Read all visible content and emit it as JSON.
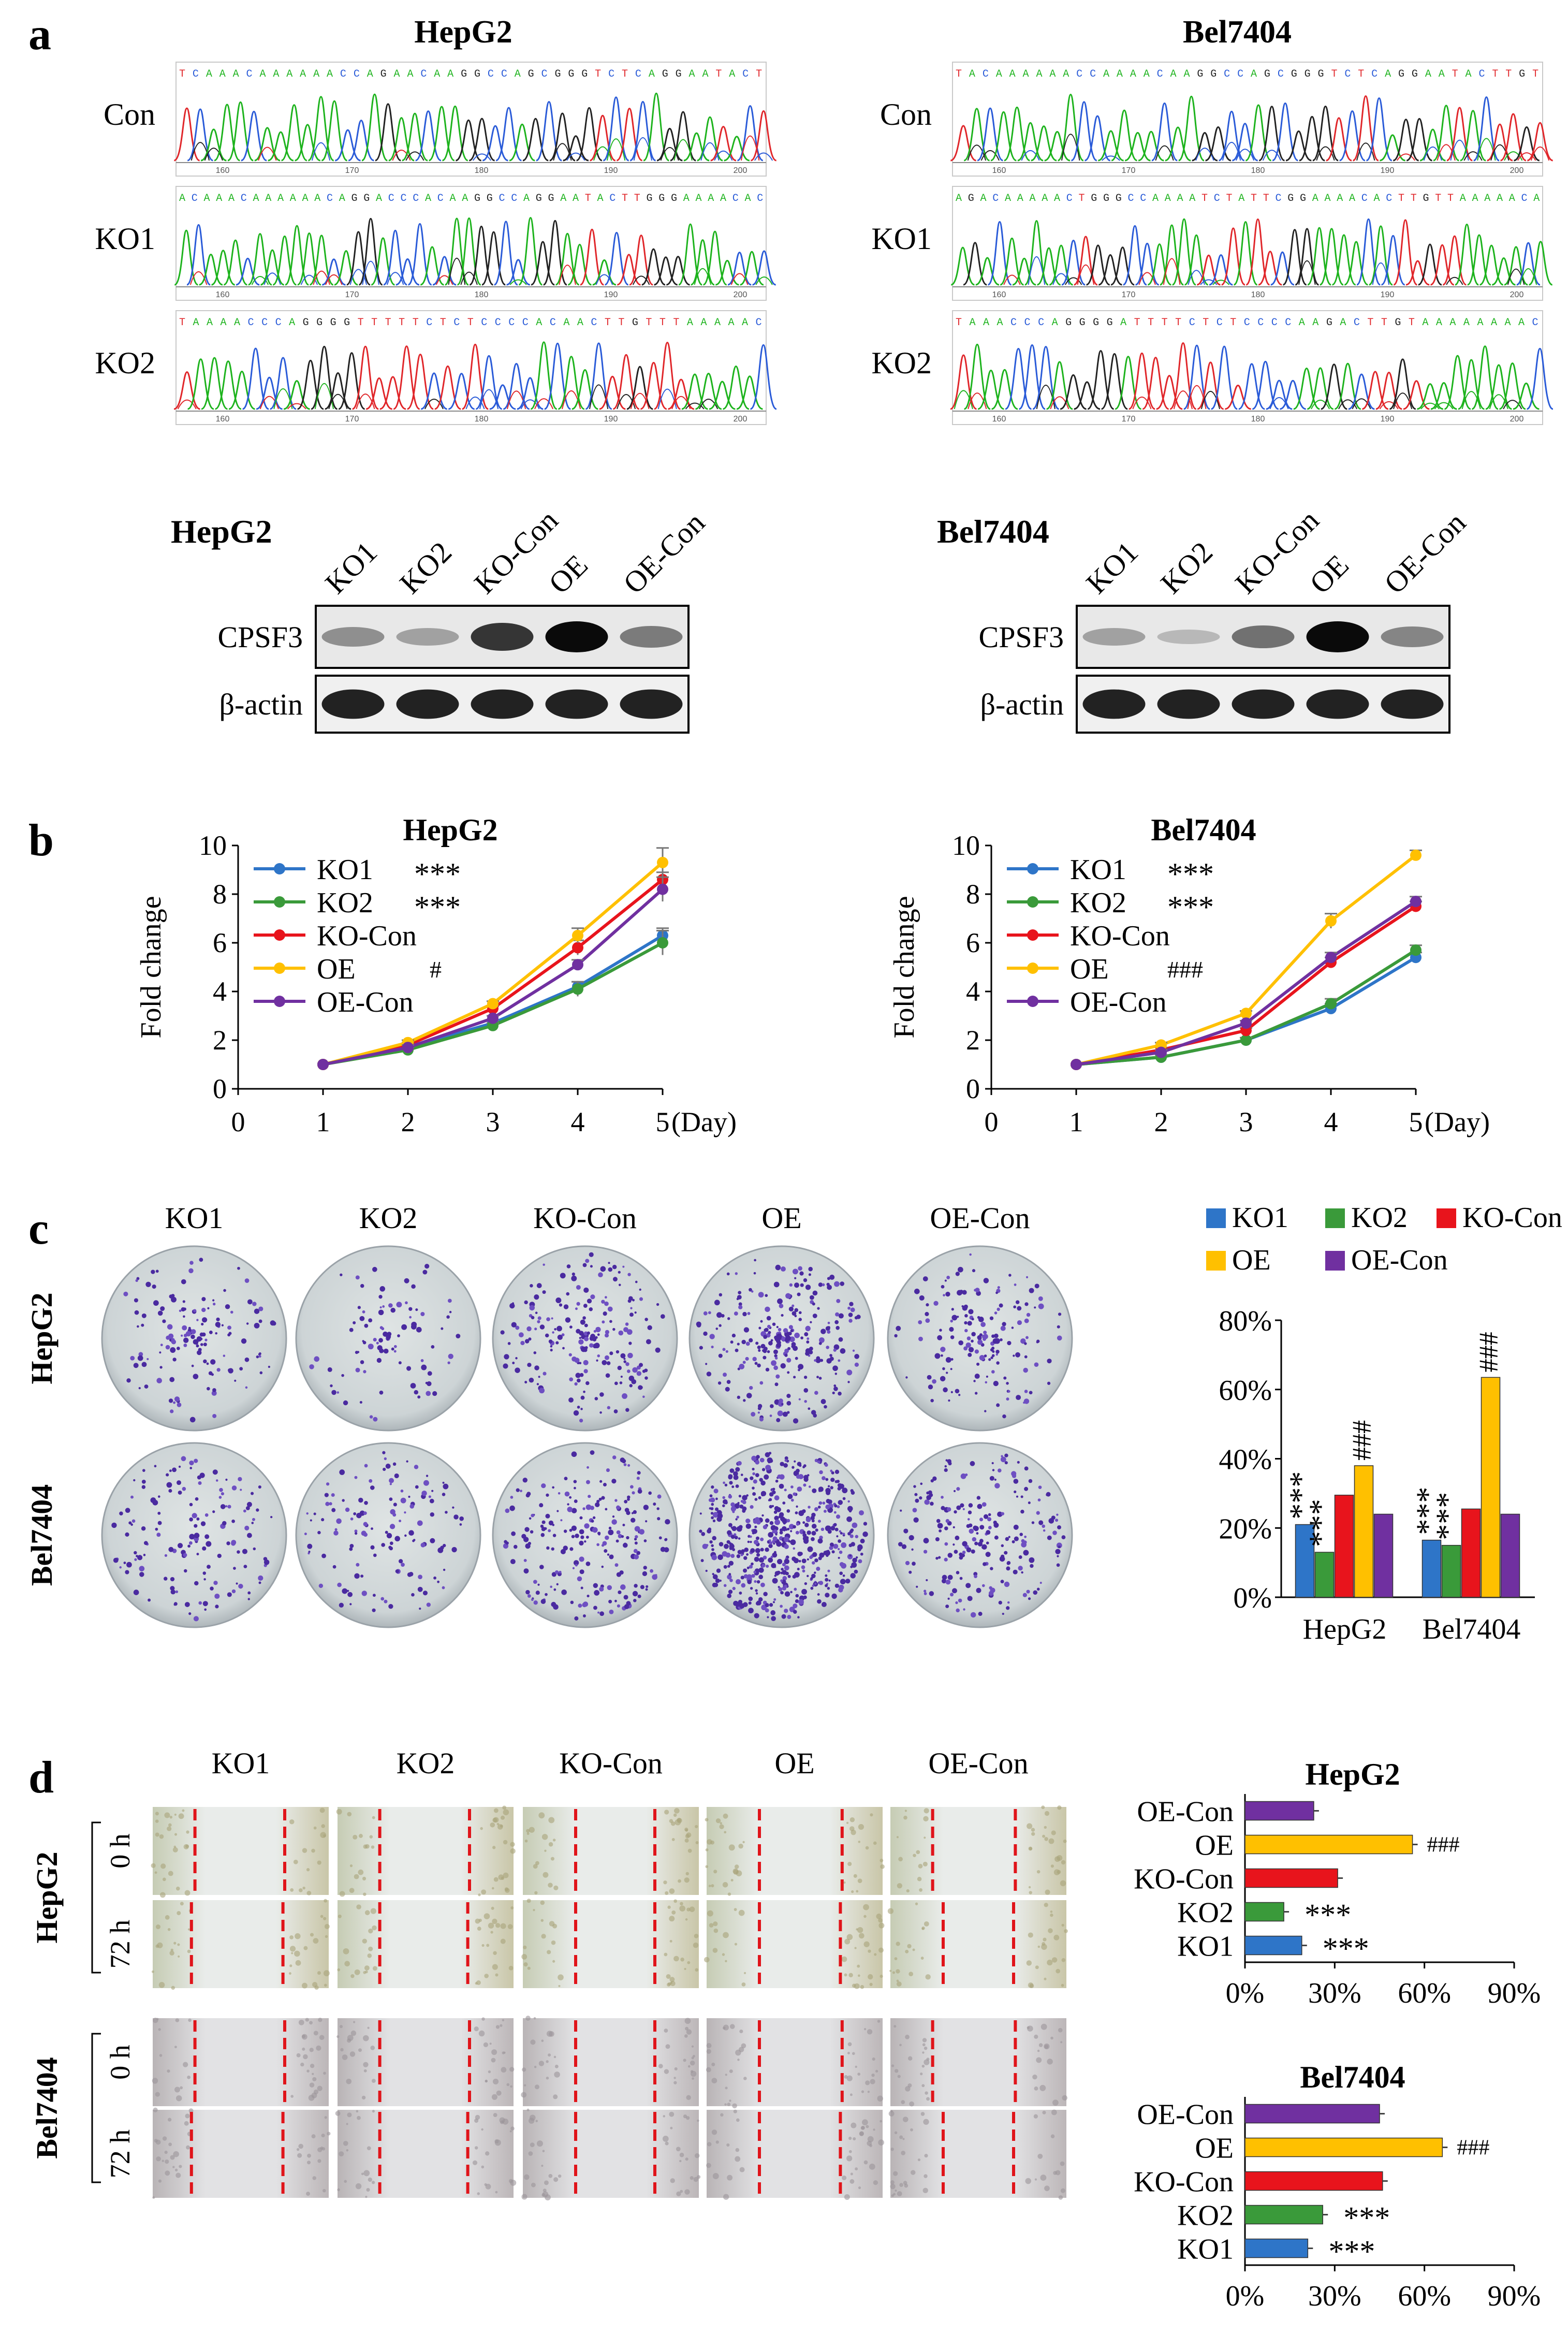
{
  "panel_a": {
    "letter": "a",
    "titles": [
      "HepG2",
      "Bel7404"
    ],
    "row_labels": [
      "Con",
      "KO1",
      "KO2"
    ],
    "seq_hep": [
      "TCAAACAAAAAACCAGAACAAGGCCAGCGGGTCTCAGGAATACT",
      "ACAAACAAAAAACAGGACCCACAAGGCCAGGAATACTTGGGAAAACAC",
      "TAAAACCCAGGGGTTTTTCTCTCCCCACAACTTGTTTAAAAAC"
    ],
    "seq_bel": [
      "TACAAAAAACCAAAACAAGGCCAGCGGGTCTCAGGAATACTTGT",
      "AGACAAAAACTGGGCCAAAATCTATTCGGAAAACACTTGTTAAAAACA",
      "TAAACCCAGGGGATTTTCTCTCCCCAAGACTTGTAAAAAAAAC"
    ],
    "ticks": [
      "160",
      "170",
      "180",
      "190",
      "200"
    ],
    "wb_cell_lines": [
      "HepG2",
      "Bel7404"
    ],
    "wb_lanes": [
      "KO1",
      "KO2",
      "KO-Con",
      "OE",
      "OE-Con"
    ],
    "wb_proteins": [
      "CPSF3",
      "β-actin"
    ],
    "cpsf3_intensity_hep": [
      0.45,
      0.35,
      0.85,
      1.0,
      0.55
    ],
    "cpsf3_intensity_bel": [
      0.35,
      0.2,
      0.6,
      1.0,
      0.5
    ]
  },
  "panel_b": {
    "letter": "b",
    "ylabel": "Fold change",
    "xunit": "(Day)",
    "colors": {
      "KO1": "#2e75c8",
      "KO2": "#3a9a3a",
      "KO-Con": "#e8141c",
      "OE": "#ffc000",
      "OE-Con": "#7030a0"
    }
  },
  "panel_c": {
    "letter": "c",
    "columns": [
      "KO1",
      "KO2",
      "KO-Con",
      "OE",
      "OE-Con"
    ],
    "rows": [
      "HepG2",
      "Bel7404"
    ]
  },
  "panel_d": {
    "letter": "d",
    "columns": [
      "KO1",
      "KO2",
      "KO-Con",
      "OE",
      "OE-Con"
    ],
    "rows": [
      "HepG2",
      "Bel7404"
    ],
    "timepoints": [
      "0 h",
      "72 h"
    ]
  },
  "chart_data": [
    {
      "id": "growth-hepg2",
      "type": "line",
      "title": "HepG2",
      "xlabel": "(Day)",
      "ylabel": "Fold change",
      "x": [
        1,
        2,
        3,
        4,
        5
      ],
      "xlim": [
        0,
        5
      ],
      "ylim": [
        0,
        10
      ],
      "xticks": [
        "0",
        "1",
        "2",
        "3",
        "4",
        "5"
      ],
      "yticks": [
        "0",
        "2",
        "4",
        "6",
        "8",
        "10"
      ],
      "series": [
        {
          "name": "KO1",
          "stat": "***",
          "values": [
            1,
            1.7,
            2.7,
            4.2,
            6.3
          ],
          "err": [
            0,
            0.1,
            0.1,
            0.2,
            0.3
          ]
        },
        {
          "name": "KO2",
          "stat": "***",
          "values": [
            1,
            1.6,
            2.6,
            4.1,
            6.0
          ],
          "err": [
            0,
            0.1,
            0.1,
            0.3,
            0.5
          ]
        },
        {
          "name": "KO-Con",
          "stat": "",
          "values": [
            1,
            1.8,
            3.3,
            5.8,
            8.6
          ],
          "err": [
            0,
            0.1,
            0.1,
            0.3,
            0.3
          ]
        },
        {
          "name": "OE",
          "stat": "#",
          "values": [
            1,
            1.9,
            3.5,
            6.3,
            9.3
          ],
          "err": [
            0,
            0.1,
            0.1,
            0.3,
            0.6
          ]
        },
        {
          "name": "OE-Con",
          "stat": "",
          "values": [
            1,
            1.7,
            2.9,
            5.1,
            8.2
          ],
          "err": [
            0,
            0.1,
            0.1,
            0.2,
            0.5
          ]
        }
      ],
      "legend": "top-left"
    },
    {
      "id": "growth-bel7404",
      "type": "line",
      "title": "Bel7404",
      "xlabel": "(Day)",
      "ylabel": "Fold change",
      "x": [
        1,
        2,
        3,
        4,
        5
      ],
      "xlim": [
        0,
        5
      ],
      "ylim": [
        0,
        10
      ],
      "xticks": [
        "0",
        "1",
        "2",
        "3",
        "4",
        "5"
      ],
      "yticks": [
        "0",
        "2",
        "4",
        "6",
        "8",
        "10"
      ],
      "series": [
        {
          "name": "KO1",
          "stat": "***",
          "values": [
            1,
            1.3,
            2.0,
            3.3,
            5.4
          ],
          "err": [
            0,
            0.1,
            0.1,
            0.2,
            0.2
          ]
        },
        {
          "name": "KO2",
          "stat": "***",
          "values": [
            1,
            1.3,
            2.0,
            3.5,
            5.7
          ],
          "err": [
            0,
            0.1,
            0.1,
            0.2,
            0.2
          ]
        },
        {
          "name": "KO-Con",
          "stat": "",
          "values": [
            1,
            1.6,
            2.4,
            5.2,
            7.5
          ],
          "err": [
            0,
            0.1,
            0.1,
            0.2,
            0.2
          ]
        },
        {
          "name": "OE",
          "stat": "###",
          "values": [
            1,
            1.8,
            3.1,
            6.9,
            9.6
          ],
          "err": [
            0,
            0.1,
            0.1,
            0.3,
            0.2
          ]
        },
        {
          "name": "OE-Con",
          "stat": "",
          "values": [
            1,
            1.5,
            2.7,
            5.4,
            7.7
          ],
          "err": [
            0,
            0.1,
            0.1,
            0.2,
            0.2
          ]
        }
      ],
      "legend": "top-left"
    },
    {
      "id": "colony-formation",
      "type": "bar",
      "categories": [
        "HepG2",
        "Bel7404"
      ],
      "yticks": [
        "0%",
        "20%",
        "40%",
        "60%",
        "80%"
      ],
      "ylim": [
        0,
        80
      ],
      "series": [
        {
          "name": "KO1",
          "values": [
            21,
            16.5
          ],
          "stats": [
            "***",
            "***"
          ]
        },
        {
          "name": "KO2",
          "values": [
            13,
            15
          ],
          "stats": [
            "***",
            "***"
          ]
        },
        {
          "name": "KO-Con",
          "values": [
            29.5,
            25.5
          ],
          "stats": [
            "",
            ""
          ]
        },
        {
          "name": "OE",
          "values": [
            38,
            63.5
          ],
          "stats": [
            "###",
            "###"
          ]
        },
        {
          "name": "OE-Con",
          "values": [
            24,
            24
          ],
          "stats": [
            "",
            ""
          ]
        }
      ],
      "legend": "top"
    },
    {
      "id": "migration-hepg2",
      "type": "bar",
      "orientation": "horizontal",
      "title": "HepG2",
      "categories": [
        "OE-Con",
        "OE",
        "KO-Con",
        "KO2",
        "KO1"
      ],
      "values": [
        23,
        56,
        31,
        13,
        19
      ],
      "stats": [
        "",
        "###",
        "",
        "***",
        "***"
      ],
      "xticks": [
        "0%",
        "30%",
        "60%",
        "90%"
      ],
      "xlim": [
        0,
        90
      ]
    },
    {
      "id": "migration-bel7404",
      "type": "bar",
      "orientation": "horizontal",
      "title": "Bel7404",
      "categories": [
        "OE-Con",
        "OE",
        "KO-Con",
        "KO2",
        "KO1"
      ],
      "values": [
        45,
        66,
        46,
        26,
        21
      ],
      "stats": [
        "",
        "###",
        "",
        "***",
        "***"
      ],
      "xticks": [
        "0%",
        "30%",
        "60%",
        "90%"
      ],
      "xlim": [
        0,
        90
      ]
    }
  ]
}
